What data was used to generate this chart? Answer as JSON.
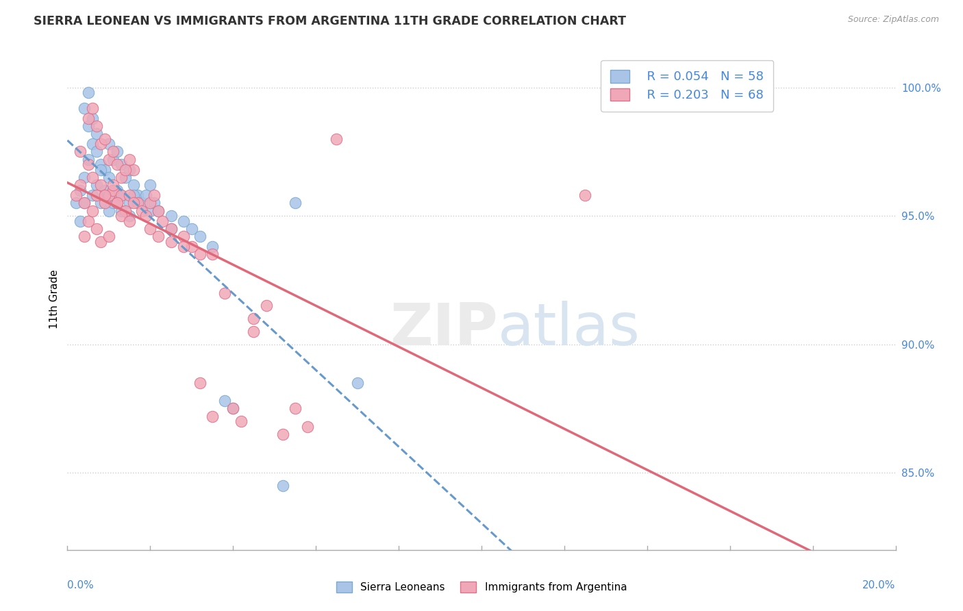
{
  "title": "SIERRA LEONEAN VS IMMIGRANTS FROM ARGENTINA 11TH GRADE CORRELATION CHART",
  "source": "Source: ZipAtlas.com",
  "ylabel": "11th Grade",
  "xmin": 0.0,
  "xmax": 20.0,
  "ymin": 82.0,
  "ymax": 101.5,
  "yticks": [
    85.0,
    90.0,
    95.0,
    100.0
  ],
  "legend_r_blue": "R = 0.054",
  "legend_n_blue": "N = 58",
  "legend_r_pink": "R = 0.203",
  "legend_n_pink": "N = 68",
  "legend_label_blue": "Sierra Leoneans",
  "legend_label_pink": "Immigrants from Argentina",
  "blue_color": "#aac4e8",
  "pink_color": "#f0a8b8",
  "blue_edge_color": "#7aaad0",
  "pink_edge_color": "#e0708a",
  "blue_line_color": "#6699cc",
  "pink_line_color": "#e06878",
  "blue_x": [
    0.2,
    0.3,
    0.4,
    0.5,
    0.5,
    0.6,
    0.6,
    0.7,
    0.7,
    0.8,
    0.8,
    0.9,
    0.9,
    1.0,
    1.0,
    1.0,
    1.1,
    1.1,
    1.2,
    1.2,
    1.3,
    1.3,
    1.4,
    1.5,
    1.5,
    1.6,
    1.7,
    1.8,
    1.9,
    2.0,
    2.1,
    2.2,
    2.5,
    2.8,
    3.0,
    3.2,
    3.5,
    4.0,
    0.4,
    0.5,
    0.6,
    0.7,
    0.8,
    0.9,
    1.0,
    1.1,
    1.2,
    1.3,
    1.5,
    1.6,
    0.3,
    0.4,
    2.0,
    5.5,
    7.0,
    5.2,
    3.8,
    2.5
  ],
  "blue_y": [
    95.5,
    96.0,
    96.5,
    97.2,
    98.5,
    95.8,
    97.8,
    96.2,
    97.5,
    95.5,
    97.0,
    95.8,
    96.8,
    95.2,
    96.5,
    97.8,
    95.5,
    97.2,
    96.0,
    97.5,
    95.8,
    97.0,
    96.5,
    95.5,
    96.8,
    96.2,
    95.8,
    95.5,
    95.8,
    95.2,
    95.5,
    95.2,
    95.0,
    94.8,
    94.5,
    94.2,
    93.8,
    87.5,
    99.2,
    99.8,
    98.8,
    98.2,
    96.8,
    96.0,
    95.8,
    96.0,
    95.5,
    95.2,
    95.0,
    95.8,
    94.8,
    95.5,
    96.2,
    95.5,
    88.5,
    84.5,
    87.8,
    94.5
  ],
  "pink_x": [
    0.2,
    0.3,
    0.4,
    0.5,
    0.5,
    0.6,
    0.6,
    0.7,
    0.7,
    0.8,
    0.8,
    0.9,
    0.9,
    1.0,
    1.0,
    1.1,
    1.1,
    1.2,
    1.2,
    1.3,
    1.3,
    1.4,
    1.5,
    1.5,
    1.6,
    1.7,
    1.8,
    1.9,
    2.0,
    2.1,
    2.2,
    2.3,
    2.5,
    2.8,
    3.0,
    3.5,
    4.0,
    4.5,
    0.4,
    0.5,
    0.6,
    0.7,
    0.8,
    0.9,
    1.0,
    1.1,
    1.2,
    1.3,
    1.5,
    1.6,
    0.3,
    1.4,
    2.0,
    2.5,
    3.2,
    6.5,
    12.5,
    4.5,
    5.5,
    5.2,
    4.2,
    5.8,
    3.2,
    3.5,
    3.8,
    4.8,
    2.2,
    2.8
  ],
  "pink_y": [
    95.8,
    96.2,
    95.5,
    97.0,
    98.8,
    96.5,
    99.2,
    95.8,
    98.5,
    96.2,
    97.8,
    95.5,
    98.0,
    95.8,
    97.2,
    96.0,
    97.5,
    95.5,
    97.0,
    95.8,
    96.5,
    95.2,
    95.8,
    97.2,
    96.8,
    95.5,
    95.2,
    95.0,
    95.5,
    95.8,
    95.2,
    94.8,
    94.5,
    94.2,
    93.8,
    93.5,
    87.5,
    90.5,
    94.2,
    94.8,
    95.2,
    94.5,
    94.0,
    95.8,
    94.2,
    96.2,
    95.5,
    95.0,
    94.8,
    95.5,
    97.5,
    96.8,
    94.5,
    94.0,
    93.5,
    98.0,
    95.8,
    91.0,
    87.5,
    86.5,
    87.0,
    86.8,
    88.5,
    87.2,
    92.0,
    91.5,
    94.2,
    93.8
  ]
}
